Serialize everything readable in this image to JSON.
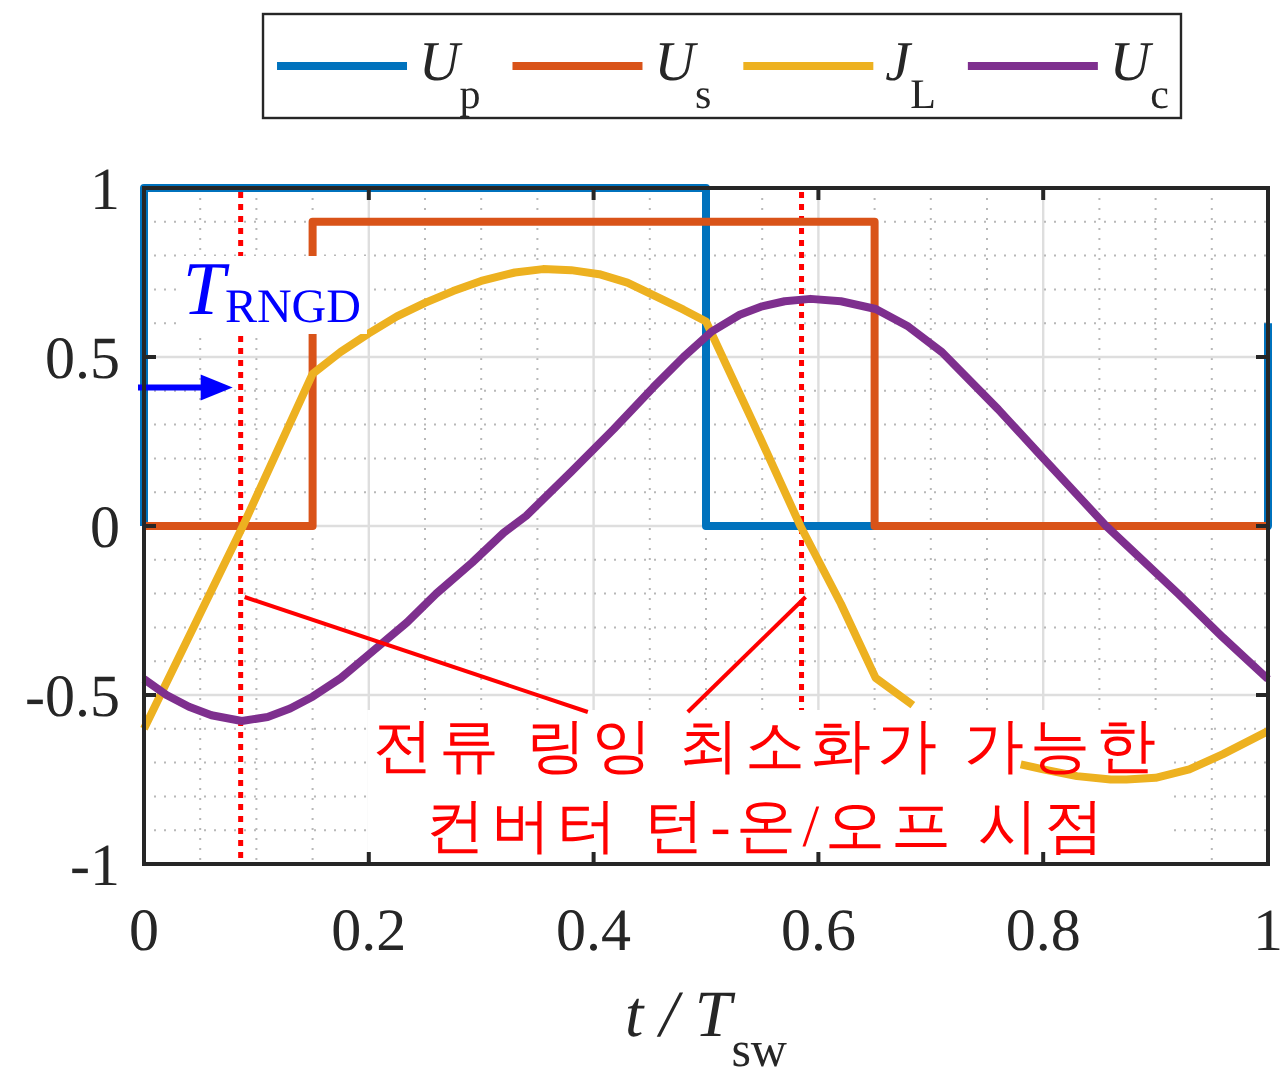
{
  "chart_data": {
    "type": "line",
    "xlabel": "t / T$_{sw}$",
    "xlim": [
      0,
      1
    ],
    "ylim": [
      -1,
      1
    ],
    "xticks": [
      0,
      0.2,
      0.4,
      0.6,
      0.8,
      1
    ],
    "yticks": [
      -1,
      -0.5,
      0,
      0.5,
      1
    ],
    "grid": true,
    "legend": "top",
    "series": [
      {
        "name": "U$_{p}$",
        "color": "#0072bd",
        "x": [
          0,
          0,
          0.5,
          0.5,
          1,
          1
        ],
        "values": [
          0,
          1,
          1,
          0,
          0,
          0.6
        ]
      },
      {
        "name": "U$_{s}$",
        "color": "#d95319",
        "x": [
          0,
          0.15,
          0.15,
          0.65,
          0.65,
          1
        ],
        "values": [
          0,
          0,
          0.9,
          0.9,
          0,
          0
        ]
      },
      {
        "name": "J$_{L}$",
        "color": "#edb120",
        "x": [
          0,
          0.088,
          0.15,
          0.175,
          0.2,
          0.225,
          0.25,
          0.275,
          0.3,
          0.33,
          0.355,
          0.38,
          0.405,
          0.43,
          0.455,
          0.48,
          0.5,
          0.54,
          0.584,
          0.62,
          0.651,
          0.684,
          0.73,
          0.78,
          0.8,
          0.83,
          0.86,
          0.874,
          0.9,
          0.93,
          0.96,
          1
        ],
        "values": [
          -0.6,
          0,
          0.45,
          0.515,
          0.57,
          0.62,
          0.66,
          0.695,
          0.725,
          0.75,
          0.76,
          0.757,
          0.745,
          0.72,
          0.68,
          0.64,
          0.605,
          0.32,
          0,
          -0.23,
          -0.45,
          -0.53,
          null,
          -0.705,
          -0.72,
          -0.74,
          -0.75,
          -0.75,
          -0.745,
          -0.72,
          -0.675,
          -0.607
        ]
      },
      {
        "name": "U$_{c}$",
        "color": "#7e2f8e",
        "x": [
          0,
          0.02,
          0.04,
          0.06,
          0.087,
          0.11,
          0.13,
          0.15,
          0.175,
          0.2,
          0.234,
          0.26,
          0.292,
          0.32,
          0.34,
          0.38,
          0.418,
          0.453,
          0.48,
          0.505,
          0.53,
          0.55,
          0.57,
          0.593,
          0.62,
          0.651,
          0.68,
          0.71,
          0.76,
          0.798,
          0.856,
          0.92,
          0.96,
          1
        ],
        "values": [
          -0.453,
          -0.5,
          -0.535,
          -0.56,
          -0.577,
          -0.565,
          -0.54,
          -0.505,
          -0.45,
          -0.38,
          -0.285,
          -0.2,
          -0.108,
          -0.02,
          0.03,
          0.16,
          0.287,
          0.41,
          0.5,
          0.575,
          0.625,
          0.65,
          0.665,
          0.672,
          0.665,
          0.642,
          0.59,
          0.514,
          0.345,
          0.208,
          0,
          -0.2,
          -0.33,
          -0.453
        ]
      }
    ],
    "ref_lines": [
      {
        "axis": "x",
        "value": 0.086,
        "label": "T$_{RNGD}$",
        "color": "#ff0000",
        "line_style": "dotted"
      },
      {
        "axis": "x",
        "value": 0.585,
        "color": "#ff0000",
        "line_style": "dotted"
      }
    ],
    "annotations": [
      {
        "text": "전류 링잉 최소화가 가능한\n컨버터 턴-온/오프 시점",
        "x": 0.086,
        "y": -0.21
      }
    ]
  }
}
